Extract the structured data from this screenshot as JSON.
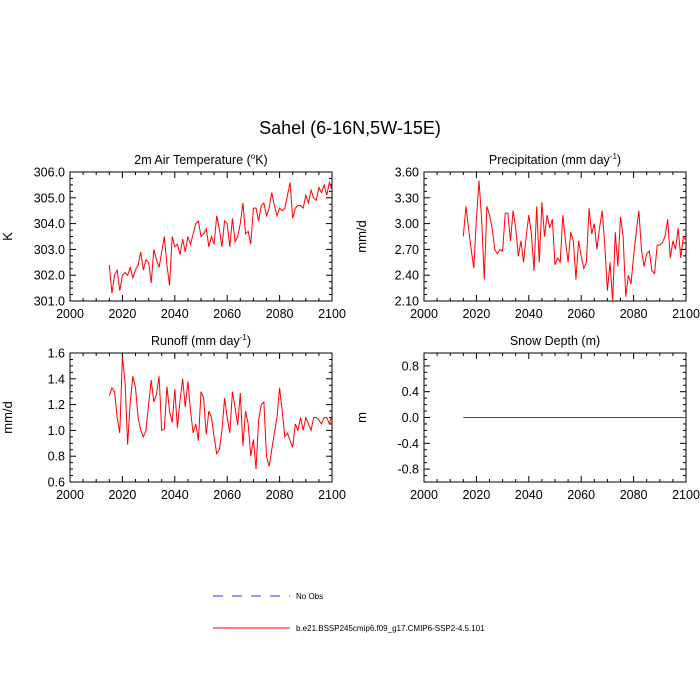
{
  "figure": {
    "title": "Sahel (6-16N,5W-15E)",
    "legend": {
      "obs_label": "No Obs",
      "obs_color": "#3333ff",
      "model_label": "b.e21.BSSP245cmip6.f09_g17.CMIP6-SSP2-4.5.101",
      "model_color": "#ff0000"
    }
  },
  "chart_data": [
    {
      "type": "line",
      "title": "2m Air Temperature (",
      "title_sup": "o",
      "title_end": "K)",
      "ylabel": "K",
      "xlim": [
        2000,
        2100
      ],
      "ylim": [
        301.0,
        306.0
      ],
      "xticks": [
        2000,
        2020,
        2040,
        2060,
        2080,
        2100
      ],
      "yticks": [
        301.0,
        302.0,
        303.0,
        304.0,
        305.0,
        306.0
      ],
      "ytick_labels": [
        "301.0",
        "302.0",
        "303.0",
        "304.0",
        "305.0",
        "306.0"
      ],
      "x_start": 2015,
      "series": [
        {
          "name": "b.e21.BSSP245cmip6.f09_g17.CMIP6-SSP2-4.5.101",
          "color": "#ff0000",
          "values": [
            302.4,
            301.3,
            302.0,
            302.2,
            301.4,
            302.0,
            302.1,
            302.0,
            302.3,
            301.9,
            302.2,
            302.4,
            302.9,
            302.2,
            302.6,
            302.5,
            301.7,
            303.0,
            302.6,
            302.3,
            302.9,
            303.5,
            302.4,
            301.6,
            303.5,
            303.1,
            303.2,
            302.8,
            303.4,
            302.9,
            303.5,
            303.2,
            303.6,
            304.0,
            304.1,
            303.5,
            303.6,
            303.8,
            303.1,
            303.5,
            303.2,
            304.3,
            303.8,
            303.1,
            304.1,
            304.0,
            303.1,
            304.2,
            303.3,
            303.5,
            304.0,
            304.8,
            303.6,
            303.7,
            303.2,
            304.6,
            304.6,
            304.1,
            304.7,
            304.8,
            304.3,
            304.6,
            305.2,
            304.7,
            304.3,
            304.6,
            304.5,
            304.6,
            305.1,
            305.6,
            304.2,
            304.6,
            304.7,
            304.7,
            304.6,
            305.1,
            304.8,
            305.3,
            305.0,
            304.9,
            305.4,
            305.2,
            305.5,
            305.1,
            305.6,
            305.3
          ]
        }
      ]
    },
    {
      "type": "line",
      "title": "Precipitation (mm day",
      "title_sup": "-1",
      "title_end": ")",
      "ylabel": "mm/d",
      "xlim": [
        2000,
        2100
      ],
      "ylim": [
        2.1,
        3.6
      ],
      "xticks": [
        2000,
        2020,
        2040,
        2060,
        2080,
        2100
      ],
      "yticks": [
        2.1,
        2.4,
        2.7,
        3.0,
        3.3,
        3.6
      ],
      "ytick_labels": [
        "2.10",
        "2.40",
        "2.70",
        "3.00",
        "3.30",
        "3.60"
      ],
      "x_start": 2015,
      "series": [
        {
          "name": "b.e21.BSSP245cmip6.f09_g17.CMIP6-SSP2-4.5.101",
          "color": "#ff0000",
          "values": [
            2.85,
            3.2,
            2.95,
            2.7,
            2.48,
            3.05,
            3.5,
            3.05,
            2.35,
            3.2,
            3.1,
            2.95,
            2.7,
            2.65,
            2.7,
            2.68,
            3.12,
            3.12,
            2.8,
            3.15,
            2.95,
            2.62,
            2.8,
            2.55,
            2.85,
            3.1,
            2.88,
            2.45,
            3.2,
            2.55,
            3.25,
            2.85,
            3.1,
            2.95,
            3.05,
            2.52,
            2.6,
            2.55,
            3.1,
            2.8,
            2.55,
            2.9,
            2.8,
            2.35,
            2.8,
            2.62,
            2.48,
            2.55,
            3.18,
            2.88,
            3.0,
            2.7,
            2.95,
            3.15,
            2.75,
            2.22,
            2.55,
            2.1,
            2.9,
            2.5,
            3.08,
            2.85,
            2.15,
            2.4,
            2.3,
            2.62,
            2.9,
            3.15,
            2.7,
            2.5,
            2.65,
            2.68,
            2.45,
            2.42,
            2.75,
            2.75,
            2.78,
            2.85,
            3.05,
            2.6,
            2.8,
            2.7,
            2.95,
            2.6,
            2.85,
            2.8
          ]
        }
      ]
    },
    {
      "type": "line",
      "title": "Runoff (mm day",
      "title_sup": "-1",
      "title_end": ")",
      "ylabel": "mm/d",
      "xlim": [
        2000,
        2100
      ],
      "ylim": [
        0.6,
        1.6
      ],
      "xticks": [
        2000,
        2020,
        2040,
        2060,
        2080,
        2100
      ],
      "yticks": [
        0.6,
        0.8,
        1.0,
        1.2,
        1.4,
        1.6
      ],
      "ytick_labels": [
        "0.6",
        "0.8",
        "1.0",
        "1.2",
        "1.4",
        "1.6"
      ],
      "x_start": 2015,
      "series": [
        {
          "name": "b.e21.BSSP245cmip6.f09_g17.CMIP6-SSP2-4.5.101",
          "color": "#ff0000",
          "values": [
            1.27,
            1.33,
            1.3,
            1.1,
            0.98,
            1.57,
            1.38,
            0.89,
            1.22,
            1.42,
            1.33,
            1.1,
            1.0,
            0.95,
            1.0,
            1.2,
            1.39,
            1.22,
            1.28,
            1.42,
            1.0,
            1.01,
            1.34,
            1.15,
            1.06,
            1.32,
            1.02,
            1.23,
            1.4,
            1.18,
            1.38,
            1.15,
            0.98,
            1.05,
            0.92,
            1.3,
            1.25,
            0.97,
            1.15,
            1.1,
            0.95,
            0.82,
            0.85,
            1.0,
            1.25,
            1.1,
            0.98,
            1.3,
            1.18,
            1.04,
            1.29,
            0.88,
            1.15,
            1.05,
            0.8,
            0.93,
            0.7,
            1.08,
            1.2,
            1.22,
            0.8,
            0.72,
            0.85,
            0.98,
            1.1,
            1.33,
            1.15,
            0.95,
            0.98,
            0.92,
            0.87,
            1.05,
            1.0,
            1.1,
            1.0,
            1.1,
            1.05,
            1.0,
            1.1,
            1.1,
            1.08,
            1.05,
            1.1,
            1.1,
            1.05,
            1.12
          ]
        }
      ]
    },
    {
      "type": "line",
      "title": "Snow Depth (m)",
      "title_sup": "",
      "title_end": "",
      "ylabel": "m",
      "xlim": [
        2000,
        2100
      ],
      "ylim": [
        -1.0,
        1.0
      ],
      "xticks": [
        2000,
        2020,
        2040,
        2060,
        2080,
        2100
      ],
      "yticks": [
        -0.8,
        -0.4,
        0.0,
        0.4,
        0.8
      ],
      "ytick_labels": [
        "-0.8",
        "-0.4",
        "0.0",
        "0.4",
        "0.8"
      ],
      "x_start": 2015,
      "series": [
        {
          "name": "b.e21.BSSP245cmip6.f09_g17.CMIP6-SSP2-4.5.101",
          "color": "#ff0000",
          "values": [
            0.0,
            0.0,
            0.0,
            0.0,
            0.0,
            0.0,
            0.0,
            0.0,
            0.0,
            0.0,
            0.0,
            0.0,
            0.0,
            0.0,
            0.0,
            0.0,
            0.0,
            0.0,
            0.0,
            0.0,
            0.0,
            0.0,
            0.0,
            0.0,
            0.0,
            0.0,
            0.0,
            0.0,
            0.0,
            0.0,
            0.0,
            0.0,
            0.0,
            0.0,
            0.0,
            0.0,
            0.0,
            0.0,
            0.0,
            0.0,
            0.0,
            0.0,
            0.0,
            0.0,
            0.0,
            0.0,
            0.0,
            0.0,
            0.0,
            0.0,
            0.0,
            0.0,
            0.0,
            0.0,
            0.0,
            0.0,
            0.0,
            0.0,
            0.0,
            0.0,
            0.0,
            0.0,
            0.0,
            0.0,
            0.0,
            0.0,
            0.0,
            0.0,
            0.0,
            0.0,
            0.0,
            0.0,
            0.0,
            0.0,
            0.0,
            0.0,
            0.0,
            0.0,
            0.0,
            0.0,
            0.0,
            0.0,
            0.0,
            0.0,
            0.0,
            0.0
          ]
        }
      ]
    }
  ]
}
